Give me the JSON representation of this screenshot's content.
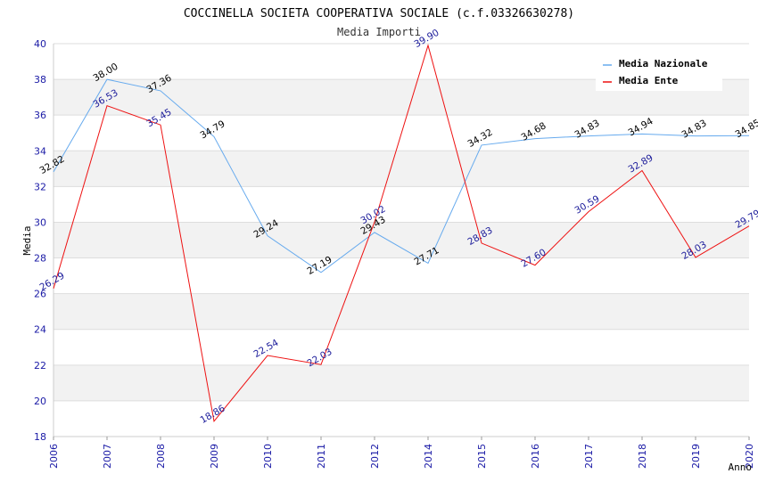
{
  "chart_data": {
    "type": "line",
    "title": "COCCINELLA SOCIETA COOPERATIVA SOCIALE (c.f.03326630278)",
    "subtitle": "Media Importi",
    "xlabel": "Anno",
    "ylabel": "Media",
    "ylim": [
      18,
      40
    ],
    "yticks": [
      18,
      20,
      22,
      24,
      26,
      28,
      30,
      32,
      34,
      36,
      38,
      40
    ],
    "categories": [
      "2006",
      "2007",
      "2008",
      "2009",
      "2010",
      "2011",
      "2012",
      "2014",
      "2015",
      "2016",
      "2017",
      "2018",
      "2019",
      "2020"
    ],
    "grid": true,
    "legend_position": "top-right",
    "series": [
      {
        "name": "Media Nazionale",
        "color": "#66aaee",
        "values": [
          32.82,
          38.0,
          37.36,
          34.79,
          29.24,
          27.19,
          29.43,
          27.71,
          34.32,
          34.68,
          34.83,
          34.94,
          34.83,
          34.85
        ],
        "labels": [
          "32.82",
          "38.00",
          "37.36",
          "34.79",
          "29.24",
          "27.19",
          "29.43",
          "27.71",
          "34.32",
          "34.68",
          "34.83",
          "34.94",
          "34.83",
          "34.85"
        ]
      },
      {
        "name": "Media Ente",
        "color": "#ee1111",
        "values": [
          26.29,
          36.53,
          35.45,
          18.86,
          22.54,
          22.03,
          30.02,
          39.9,
          28.83,
          27.6,
          30.59,
          32.89,
          28.03,
          29.79
        ],
        "labels": [
          "26.29",
          "36.53",
          "35.45",
          "18.86",
          "22.54",
          "22.03",
          "30.02",
          "39.90",
          "28.83",
          "27.60",
          "30.59",
          "32.89",
          "28.03",
          "29.79"
        ]
      }
    ]
  }
}
